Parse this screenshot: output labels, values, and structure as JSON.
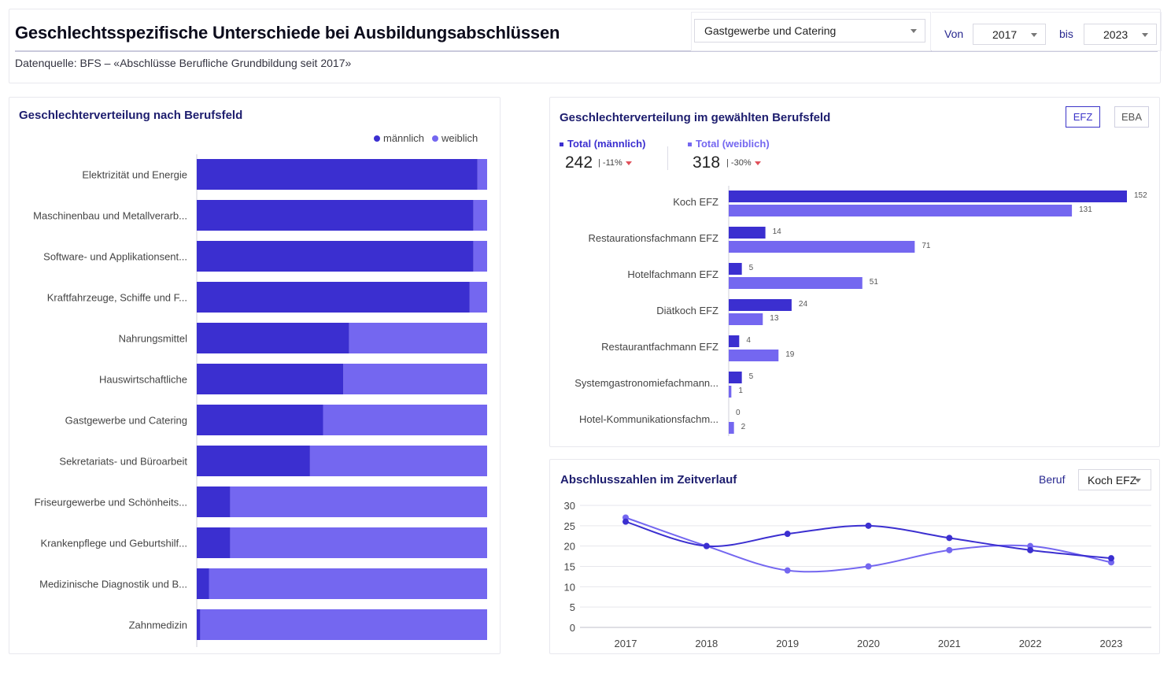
{
  "header": {
    "title": "Geschlechtsspezifische Unterschiede bei Ausbildungsabschlüssen",
    "source": "Datenquelle: BFS – «Abschlüsse Berufliche Grundbildung seit 2017»",
    "field_select": "Gastgewerbe und Catering",
    "from_label": "Von",
    "from_value": "2017",
    "to_label": "bis",
    "to_value": "2023"
  },
  "colors": {
    "male": "#3b2fd0",
    "female": "#7467f0",
    "accent": "#27278f",
    "down": "#e0505a"
  },
  "left_panel": {
    "title": "Geschlechterverteilung nach Berufsfeld",
    "legend_male": "männlich",
    "legend_female": "weiblich"
  },
  "right_top": {
    "title": "Geschlechterverteilung im gewählten Berufsfeld",
    "toggle_efz": "EFZ",
    "toggle_eba": "EBA",
    "kpi_male_label": "Total (männlich)",
    "kpi_male_value": "242",
    "kpi_male_delta": "-11%",
    "kpi_female_label": "Total (weiblich)",
    "kpi_female_value": "318",
    "kpi_female_delta": "-30%"
  },
  "right_bottom": {
    "title": "Abschlusszahlen im Zeitverlauf",
    "beruf_label": "Beruf",
    "beruf_value": "Koch EFZ"
  },
  "chart_data": [
    {
      "type": "bar",
      "orientation": "horizontal-stacked-100",
      "title": "Geschlechterverteilung nach Berufsfeld",
      "categories": [
        "Elektrizität und Energie",
        "Maschinenbau und Metallverarb...",
        "Software- und Applikationsent...",
        "Kraftfahrzeuge, Schiffe und F...",
        "Nahrungsmittel",
        "Hauswirtschaftliche",
        "Gastgewerbe und Catering",
        "Sekretariats- und Büroarbeit",
        "Friseurgewerbe und Schönheits...",
        "Krankenpflege und Geburtshilf...",
        "Medizinische Diagnostik und B...",
        "Zahnmedizin"
      ],
      "series": [
        {
          "name": "männlich",
          "values": [
            0.967,
            0.953,
            0.953,
            0.94,
            0.525,
            0.505,
            0.435,
            0.39,
            0.115,
            0.115,
            0.042,
            0.012
          ]
        },
        {
          "name": "weiblich",
          "values": [
            0.033,
            0.047,
            0.047,
            0.06,
            0.475,
            0.495,
            0.565,
            0.61,
            0.885,
            0.885,
            0.958,
            0.988
          ]
        }
      ],
      "legend": "top-right"
    },
    {
      "type": "bar",
      "orientation": "horizontal-grouped",
      "title": "Geschlechterverteilung im gewählten Berufsfeld",
      "categories": [
        "Koch EFZ",
        "Restaurationsfachmann EFZ",
        "Hotelfachmann EFZ",
        "Diätkoch EFZ",
        "Restaurantfachmann EFZ",
        "Systemgastronomiefachmann...",
        "Hotel-Kommunikationsfachm..."
      ],
      "series": [
        {
          "name": "Total (männlich)",
          "values": [
            152,
            14,
            5,
            24,
            4,
            5,
            0
          ]
        },
        {
          "name": "Total (weiblich)",
          "values": [
            131,
            71,
            51,
            13,
            19,
            1,
            2
          ]
        }
      ]
    },
    {
      "type": "line",
      "title": "Abschlusszahlen im Zeitverlauf",
      "x": [
        "2017",
        "2018",
        "2019",
        "2020",
        "2021",
        "2022",
        "2023"
      ],
      "series": [
        {
          "values": [
            26,
            20,
            23,
            25,
            22,
            19,
            17
          ]
        },
        {
          "values": [
            27,
            20,
            14,
            15,
            19,
            20,
            16
          ]
        }
      ],
      "yticks": [
        "0",
        "5",
        "10",
        "15",
        "20",
        "25",
        "30"
      ],
      "ylim": [
        0,
        30
      ],
      "grid": true
    }
  ]
}
